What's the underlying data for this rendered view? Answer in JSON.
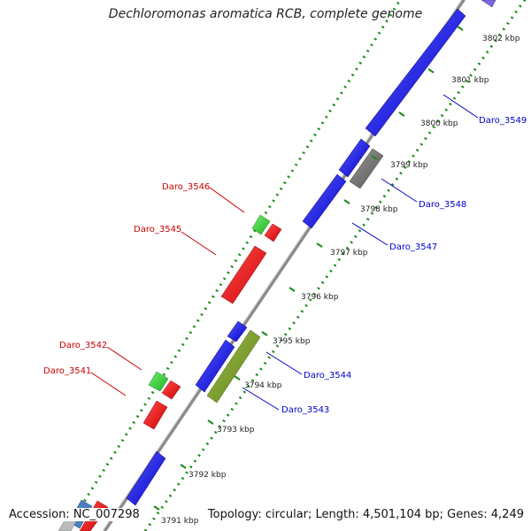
{
  "title": "Dechloromonas aromatica RCB, complete genome",
  "footer": {
    "accession": "Accession: NC_007298",
    "summary": "Topology: circular; Length: 4,501,104 bp; Genes: 4,249"
  },
  "colors": {
    "backbone": "#8a8a8a",
    "reverse_genes": "#e61616",
    "forward_genes": "#1616e6",
    "rna_genes": "#2ecc2e",
    "other": "#707070",
    "olive": "#7a9a2a",
    "tick_dots": "#1a8a1a"
  },
  "scale": {
    "ticks": [
      {
        "label": "3791 kbp"
      },
      {
        "label": "3792 kbp"
      },
      {
        "label": "3793 kbp"
      },
      {
        "label": "3794 kbp"
      },
      {
        "label": "3795 kbp"
      },
      {
        "label": "3796 kbp"
      },
      {
        "label": "3797 kbp"
      },
      {
        "label": "3798 kbp"
      },
      {
        "label": "3799 kbp"
      },
      {
        "label": "3800 kbp"
      },
      {
        "label": "3801 kbp"
      },
      {
        "label": "3802 kbp"
      }
    ]
  },
  "gene_labels": {
    "left": [
      {
        "name": "Daro_3546",
        "color": "#cc0000"
      },
      {
        "name": "Daro_3545",
        "color": "#cc0000"
      },
      {
        "name": "Daro_3542",
        "color": "#cc0000"
      },
      {
        "name": "Daro_3541",
        "color": "#cc0000"
      }
    ],
    "right": [
      {
        "name": "Daro_3549",
        "color": "#0000cc"
      },
      {
        "name": "Daro_3548",
        "color": "#0000cc"
      },
      {
        "name": "Daro_3547",
        "color": "#0000cc"
      },
      {
        "name": "Daro_3544",
        "color": "#0000cc"
      },
      {
        "name": "Daro_3543",
        "color": "#0000cc"
      }
    ]
  }
}
